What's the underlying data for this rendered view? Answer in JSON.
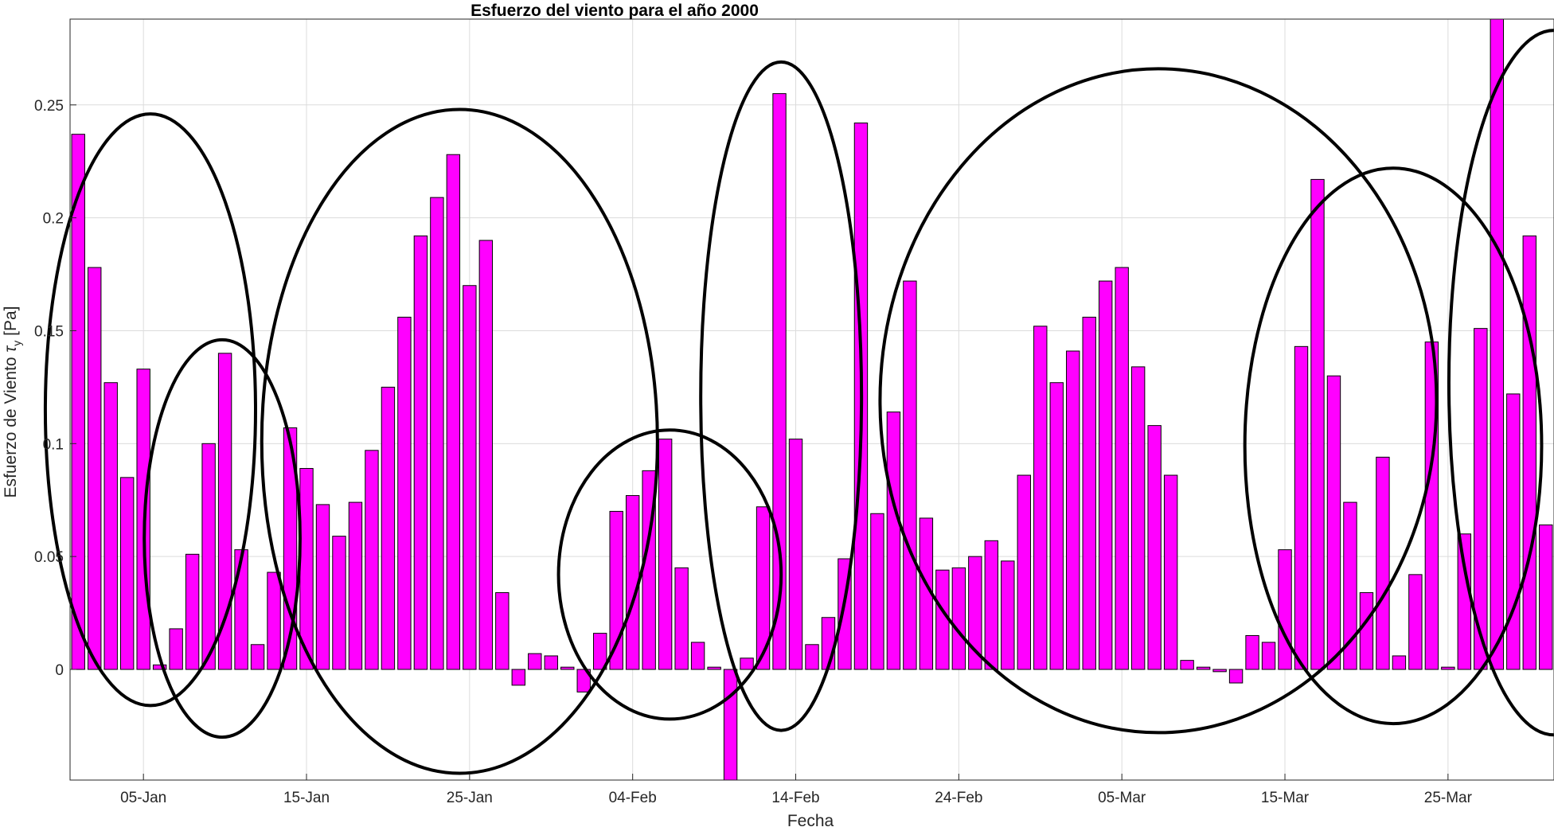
{
  "chart_data": {
    "type": "bar",
    "title": "Esfuerzo del viento para el año 2000",
    "xlabel": "Fecha",
    "ylabel_main": "Esfuerzo de Viento ",
    "ylabel_symbol": "τ",
    "ylabel_subscript": "y",
    "ylabel_unit": " [Pa]",
    "ylim": [
      -0.049,
      0.288
    ],
    "y_ticks": [
      0,
      0.05,
      0.1,
      0.15,
      0.2,
      0.25
    ],
    "y_tick_labels": [
      "0",
      "0.05",
      "0.1",
      "0.15",
      "0.2",
      "0.25"
    ],
    "x_ticks": [
      {
        "date": "2000-01-05",
        "label": "05-Jan"
      },
      {
        "date": "2000-01-15",
        "label": "15-Jan"
      },
      {
        "date": "2000-01-25",
        "label": "25-Jan"
      },
      {
        "date": "2000-02-04",
        "label": "04-Feb"
      },
      {
        "date": "2000-02-14",
        "label": "14-Feb"
      },
      {
        "date": "2000-02-24",
        "label": "24-Feb"
      },
      {
        "date": "2000-03-05",
        "label": "05-Mar"
      },
      {
        "date": "2000-03-15",
        "label": "15-Mar"
      },
      {
        "date": "2000-03-25",
        "label": "25-Mar"
      }
    ],
    "xlim": [
      "2000-01-00.5",
      "2000-03-30.5"
    ],
    "grid": true,
    "bar_color": "#ff00ff",
    "bar_edge_color": "#000000",
    "series": [
      {
        "start_date": "2000-01-01",
        "values": [
          0.237,
          0.178,
          0.127,
          0.085,
          0.133,
          0.002,
          0.018,
          0.051,
          0.1,
          0.14,
          0.053,
          0.011,
          0.043,
          0.107,
          0.089,
          0.073,
          0.059,
          0.074,
          0.097,
          0.125,
          0.156,
          0.192,
          0.209,
          0.228,
          0.17,
          0.19,
          0.034,
          -0.007,
          0.007,
          0.006,
          0.001,
          -0.01,
          0.016,
          0.07,
          0.077,
          0.088,
          0.102,
          0.045,
          0.012,
          0.001,
          -0.053,
          0.005,
          0.072,
          0.255,
          0.102,
          0.011,
          0.023,
          0.049,
          0.242,
          0.069,
          0.114,
          0.172,
          0.067,
          0.044,
          0.045,
          0.05,
          0.057,
          0.048,
          0.086,
          0.152,
          0.127,
          0.141,
          0.156,
          0.172,
          0.178,
          0.134,
          0.108,
          0.086,
          0.004,
          0.001,
          -0.001,
          -0.006,
          0.015,
          0.012,
          0.053,
          0.143,
          0.217,
          0.13,
          0.074,
          0.034,
          0.094,
          0.006,
          0.042,
          0.145,
          0.001,
          0.06,
          0.151,
          0.3,
          0.122,
          0.192,
          0.064
        ]
      }
    ]
  }
}
